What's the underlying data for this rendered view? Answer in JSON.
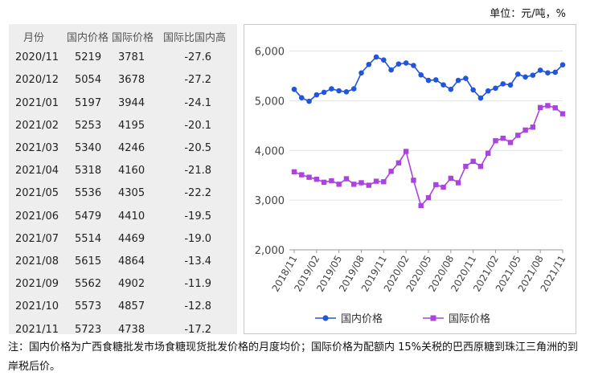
{
  "unit_label": "单位：元/吨，%",
  "table": {
    "headers": [
      "月份",
      "国内价格",
      "国际价格",
      "国际比国内高"
    ],
    "rows": [
      [
        "2020/11",
        "5219",
        "3781",
        "-27.6"
      ],
      [
        "2020/12",
        "5054",
        "3678",
        "-27.2"
      ],
      [
        "2021/01",
        "5197",
        "3944",
        "-24.1"
      ],
      [
        "2021/02",
        "5253",
        "4195",
        "-20.1"
      ],
      [
        "2021/03",
        "5340",
        "4246",
        "-20.5"
      ],
      [
        "2021/04",
        "5318",
        "4160",
        "-21.8"
      ],
      [
        "2021/05",
        "5536",
        "4305",
        "-22.2"
      ],
      [
        "2021/06",
        "5479",
        "4410",
        "-19.5"
      ],
      [
        "2021/07",
        "5514",
        "4469",
        "-19.0"
      ],
      [
        "2021/08",
        "5615",
        "4864",
        "-13.4"
      ],
      [
        "2021/09",
        "5562",
        "4902",
        "-11.9"
      ],
      [
        "2021/10",
        "5573",
        "4857",
        "-12.8"
      ],
      [
        "2021/11",
        "5723",
        "4738",
        "-17.2"
      ]
    ]
  },
  "note": "注：国内价格为广西食糖批发市场食糖现货批发价格的月度均价；国际价格为配额内 15%关税的巴西原糖到珠江三角洲的到岸税后价。",
  "chart_data": {
    "type": "line",
    "x": [
      "2018/11",
      "2018/12",
      "2019/01",
      "2019/02",
      "2019/03",
      "2019/04",
      "2019/05",
      "2019/06",
      "2019/07",
      "2019/08",
      "2019/09",
      "2019/10",
      "2019/11",
      "2019/12",
      "2020/01",
      "2020/02",
      "2020/03",
      "2020/04",
      "2020/05",
      "2020/06",
      "2020/07",
      "2020/08",
      "2020/09",
      "2020/10",
      "2020/11",
      "2020/12",
      "2021/01",
      "2021/02",
      "2021/03",
      "2021/04",
      "2021/05",
      "2021/06",
      "2021/07",
      "2021/08",
      "2021/09",
      "2021/10",
      "2021/11"
    ],
    "xtick_labels": [
      "2018/11",
      "2019/02",
      "2019/05",
      "2019/08",
      "2019/11",
      "2020/02",
      "2020/05",
      "2020/08",
      "2020/11",
      "2021/02",
      "2021/05",
      "2021/08",
      "2021/11"
    ],
    "yticks": [
      "2,000",
      "3,000",
      "4,000",
      "5,000",
      "6,000"
    ],
    "ylim": [
      2000,
      6300
    ],
    "legend_position": "bottom",
    "series": [
      {
        "name": "国内价格",
        "color": "#2255dd",
        "marker": "circle",
        "values": [
          5230,
          5060,
          4990,
          5120,
          5170,
          5240,
          5200,
          5180,
          5240,
          5560,
          5730,
          5880,
          5820,
          5620,
          5740,
          5760,
          5710,
          5520,
          5410,
          5420,
          5320,
          5230,
          5410,
          5450,
          5219,
          5054,
          5197,
          5253,
          5340,
          5318,
          5536,
          5479,
          5514,
          5615,
          5562,
          5573,
          5723
        ]
      },
      {
        "name": "国际价格",
        "color": "#aa44dd",
        "marker": "square",
        "values": [
          3570,
          3510,
          3460,
          3420,
          3360,
          3390,
          3320,
          3430,
          3320,
          3350,
          3300,
          3380,
          3370,
          3580,
          3750,
          3980,
          3400,
          2890,
          3050,
          3310,
          3260,
          3440,
          3350,
          3680,
          3781,
          3678,
          3944,
          4195,
          4246,
          4160,
          4305,
          4410,
          4469,
          4864,
          4902,
          4857,
          4738
        ]
      }
    ]
  }
}
